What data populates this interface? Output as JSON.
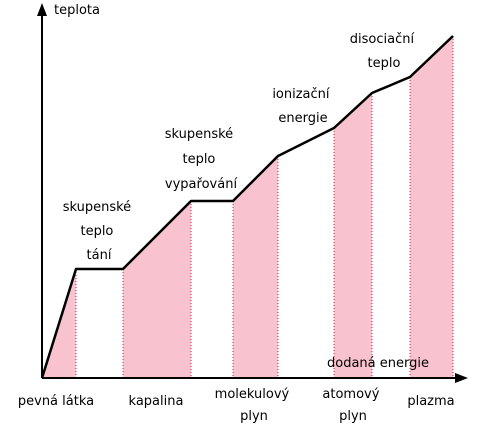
{
  "axes": {
    "y_label": "teplota",
    "x_label": "dodaná energie"
  },
  "latent_heats": [
    {
      "lines": [
        "skupenské",
        "teplo",
        "tání"
      ]
    },
    {
      "lines": [
        "skupenské",
        "teplo",
        "vypařování"
      ]
    },
    {
      "lines": [
        "ionizační",
        "energie"
      ]
    },
    {
      "lines": [
        "disociační",
        "teplo"
      ]
    }
  ],
  "states": [
    {
      "lines": [
        "pevná látka"
      ]
    },
    {
      "lines": [
        "kapalina"
      ]
    },
    {
      "lines": [
        "molekulový",
        "plyn"
      ]
    },
    {
      "lines": [
        "atomový",
        "plyn"
      ]
    },
    {
      "lines": [
        "plazma"
      ]
    }
  ],
  "colors": {
    "state_fill": "#f9c2cf",
    "curve": "#000000",
    "dots": "#d0204a",
    "axis": "#000000"
  }
}
